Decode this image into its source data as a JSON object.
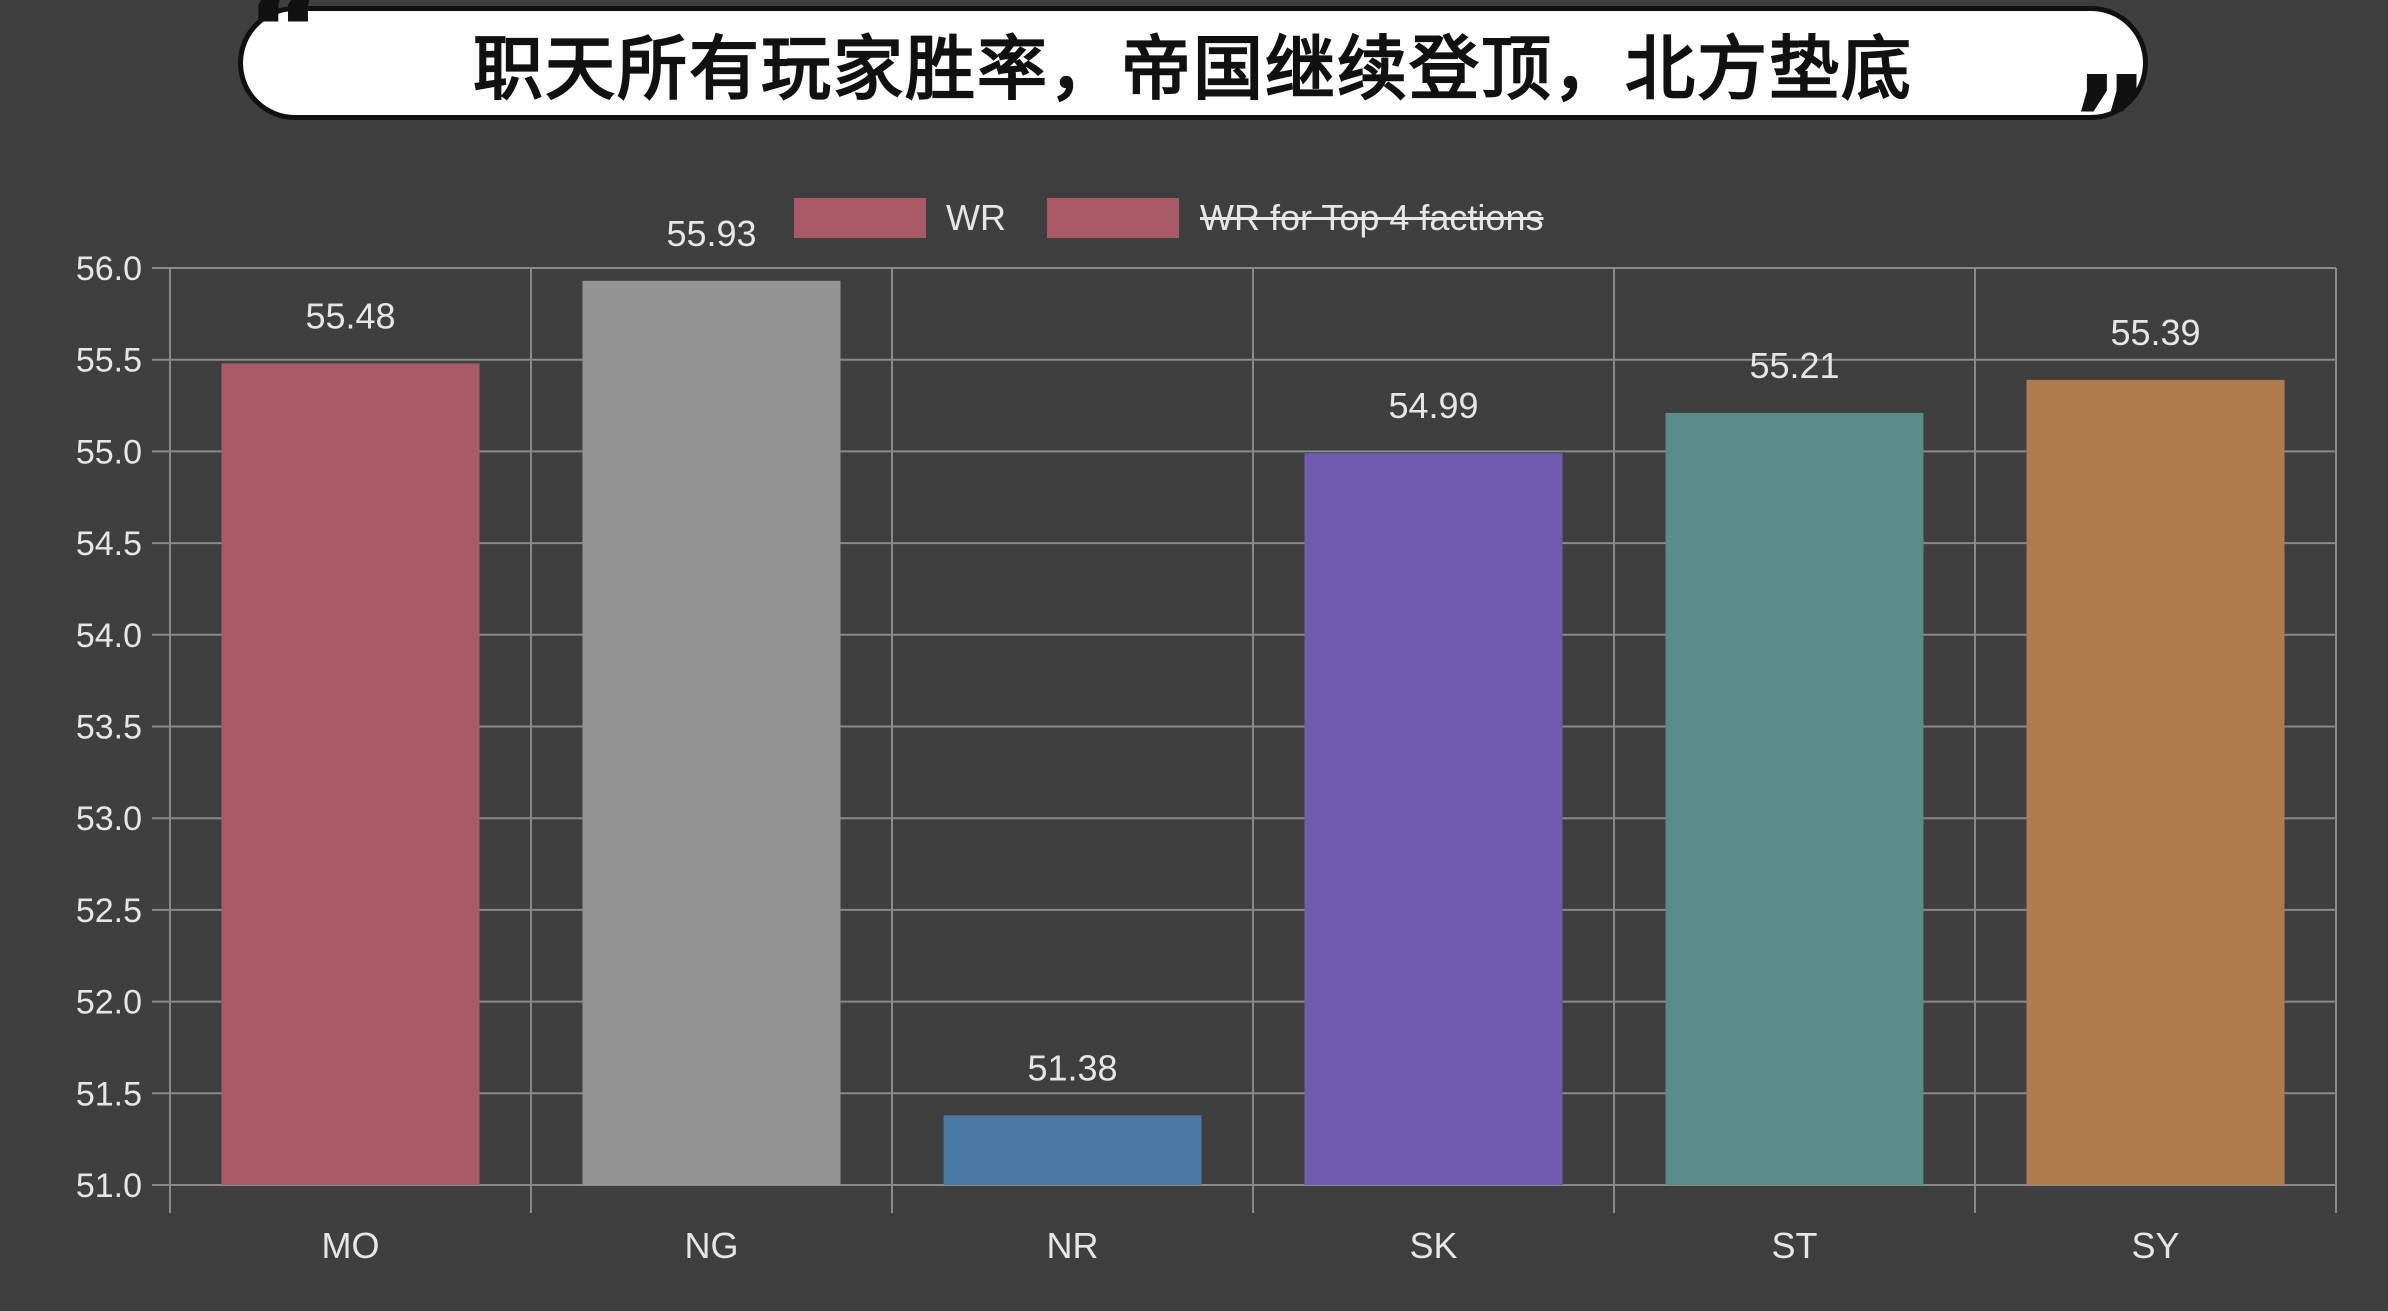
{
  "title": {
    "open_quote": "“",
    "text": "职天所有玩家胜率，帝国继续登顶，北方垫底",
    "close_quote": "”"
  },
  "colors": {
    "background": "#3f3f3f",
    "grid": "#8a8a8a",
    "text": "#e6e6e6",
    "legend_swatch": "#a85a66"
  },
  "legend": {
    "placement": "top-center",
    "items": [
      {
        "label": "WR",
        "struck": false
      },
      {
        "label": "WR for Top 4 factions",
        "struck": true
      }
    ]
  },
  "chart_data": {
    "type": "bar",
    "categories": [
      "MO",
      "NG",
      "NR",
      "SK",
      "ST",
      "SY"
    ],
    "series": [
      {
        "name": "WR",
        "values": [
          55.48,
          55.93,
          51.38,
          54.99,
          55.21,
          55.39
        ],
        "colors": [
          "#a85a66",
          "#949494",
          "#4b7aa6",
          "#715bb0",
          "#5a8d8a",
          "#b07c4e"
        ]
      }
    ],
    "data_labels": [
      "55.48",
      "55.93",
      "51.38",
      "54.99",
      "55.21",
      "55.39"
    ],
    "y_ticks": [
      "51.0",
      "51.5",
      "52.0",
      "52.5",
      "53.0",
      "53.5",
      "54.0",
      "54.5",
      "55.0",
      "55.5",
      "56.0"
    ],
    "ylim": [
      51.0,
      56.0
    ],
    "grid": true,
    "xlabel": "",
    "ylabel": ""
  }
}
